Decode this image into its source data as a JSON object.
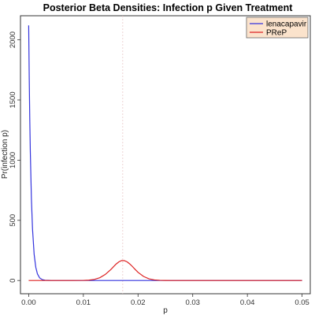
{
  "chart_data": {
    "type": "line",
    "title": "Posterior Beta Densities: Infection p Given Treatment",
    "xlabel": "p",
    "ylabel": "Pr(infection p)",
    "xlim": [
      -0.0015,
      0.0515
    ],
    "ylim": [
      -110,
      2200
    ],
    "xticks": [
      0.0,
      0.01,
      0.02,
      0.03,
      0.04,
      0.05
    ],
    "xtick_labels": [
      "0.00",
      "0.01",
      "0.02",
      "0.03",
      "0.04",
      "0.05"
    ],
    "yticks": [
      0,
      500,
      1000,
      1500,
      2000
    ],
    "ytick_labels": [
      "0",
      "500",
      "1000",
      "1500",
      "2000"
    ],
    "vline": 0.0172,
    "grid": false,
    "legend_position": "top-right",
    "series": [
      {
        "name": "lenacapavir",
        "color": "#3333dd",
        "x": [
          0.0,
          0.0001,
          0.0002,
          0.0003,
          0.0005,
          0.0007,
          0.001,
          0.0013,
          0.0016,
          0.002,
          0.0025,
          0.003,
          0.004,
          0.006,
          0.01,
          0.02,
          0.03,
          0.04,
          0.05
        ],
        "values": [
          2120,
          1687,
          1343,
          1069,
          677,
          429,
          217,
          110,
          55,
          22,
          7,
          2,
          0.2,
          0,
          0,
          0,
          0,
          0,
          0
        ]
      },
      {
        "name": "PReP",
        "color": "#dd2222",
        "x": [
          0.0,
          0.005,
          0.008,
          0.01,
          0.011,
          0.012,
          0.013,
          0.014,
          0.015,
          0.016,
          0.0165,
          0.017,
          0.0175,
          0.018,
          0.0185,
          0.019,
          0.0195,
          0.02,
          0.021,
          0.022,
          0.023,
          0.024,
          0.025,
          0.026,
          0.028,
          0.03,
          0.035,
          0.05
        ],
        "values": [
          0,
          0,
          0,
          1,
          3,
          9,
          23,
          50,
          90,
          137,
          155,
          166,
          165,
          155,
          137,
          115,
          91,
          68,
          34,
          14,
          5,
          1.5,
          0.5,
          0,
          0,
          0,
          0,
          0
        ]
      }
    ]
  }
}
